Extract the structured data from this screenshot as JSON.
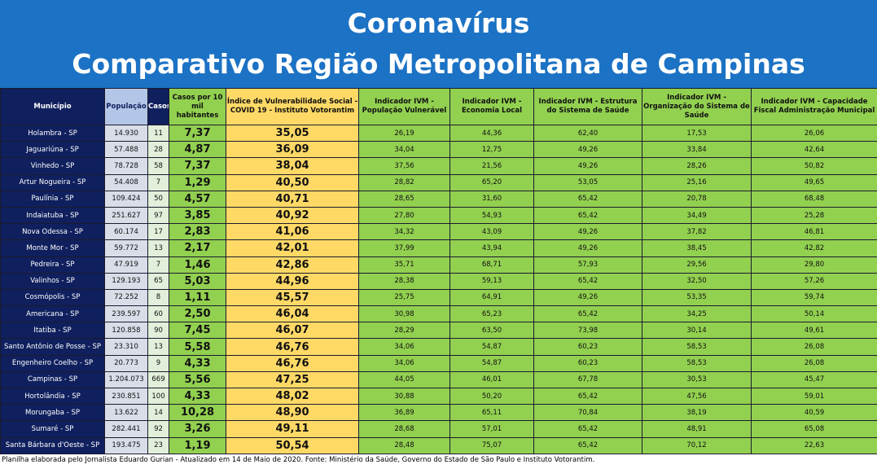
{
  "header": {
    "title": "Coronavírus",
    "subtitle": "Comparativo Região Metropolitana de Campinas"
  },
  "table": {
    "header": [
      "Município",
      "População",
      "Casos",
      "Casos por 10 mil habitantes",
      "Índice de Vulnerabilidade Social - COVID 19 - Instituto Votorantim",
      "Indicador IVM - População Vulnerável",
      "Indicador IVM - Economia Local",
      "Indicador IVM - Estrutura do Sistema de Saúde",
      "Indicador IVM - Organização do Sistema de Saúde",
      "Indicador IVM - Capacidade Fiscal Administração Municipal"
    ],
    "rows": [
      [
        "Holambra - SP",
        "14.930",
        "11",
        "7,37",
        "35,05",
        "26,19",
        "44,36",
        "62,40",
        "17,53",
        "26,06"
      ],
      [
        "Jaguariúna - SP",
        "57.488",
        "28",
        "4,87",
        "36,09",
        "34,04",
        "12,75",
        "49,26",
        "33,84",
        "42,64"
      ],
      [
        "Vinhedo - SP",
        "78.728",
        "58",
        "7,37",
        "38,04",
        "37,56",
        "21,56",
        "49,26",
        "28,26",
        "50,82"
      ],
      [
        "Artur Nogueira - SP",
        "54.408",
        "7",
        "1,29",
        "40,50",
        "28,82",
        "65,20",
        "53,05",
        "25,16",
        "49,65"
      ],
      [
        "Paulínia - SP",
        "109.424",
        "50",
        "4,57",
        "40,71",
        "28,65",
        "31,60",
        "65,42",
        "20,78",
        "68,48"
      ],
      [
        "Indaiatuba - SP",
        "251.627",
        "97",
        "3,85",
        "40,92",
        "27,80",
        "54,93",
        "65,42",
        "34,49",
        "25,28"
      ],
      [
        "Nova Odessa - SP",
        "60.174",
        "17",
        "2,83",
        "41,06",
        "34,32",
        "43,09",
        "49,26",
        "37,82",
        "46,81"
      ],
      [
        "Monte Mor - SP",
        "59.772",
        "13",
        "2,17",
        "42,01",
        "37,99",
        "43,94",
        "49,26",
        "38,45",
        "42,82"
      ],
      [
        "Pedreira - SP",
        "47.919",
        "7",
        "1,46",
        "42,86",
        "35,71",
        "68,71",
        "57,93",
        "29,56",
        "29,80"
      ],
      [
        "Valinhos - SP",
        "129.193",
        "65",
        "5,03",
        "44,96",
        "28,38",
        "59,13",
        "65,42",
        "32,50",
        "57,26"
      ],
      [
        "Cosmópolis - SP",
        "72.252",
        "8",
        "1,11",
        "45,57",
        "25,75",
        "64,91",
        "49,26",
        "53,35",
        "59,74"
      ],
      [
        "Americana - SP",
        "239.597",
        "60",
        "2,50",
        "46,04",
        "30,98",
        "65,23",
        "65,42",
        "34,25",
        "50,14"
      ],
      [
        "Itatiba - SP",
        "120.858",
        "90",
        "7,45",
        "46,07",
        "28,29",
        "63,50",
        "73,98",
        "30,14",
        "49,61"
      ],
      [
        "Santo Antônio de Posse - SP",
        "23.310",
        "13",
        "5,58",
        "46,76",
        "34,06",
        "54,87",
        "60,23",
        "58,53",
        "26,08"
      ],
      [
        "Engenheiro Coelho - SP",
        "20.773",
        "9",
        "4,33",
        "46,76",
        "34,06",
        "54,87",
        "60,23",
        "58,53",
        "26,08"
      ],
      [
        "Campinas - SP",
        "1.204.073",
        "669",
        "5,56",
        "47,25",
        "44,05",
        "46,01",
        "67,78",
        "30,53",
        "45,47"
      ],
      [
        "Hortolândia - SP",
        "230.851",
        "100",
        "4,33",
        "48,02",
        "30,88",
        "50,20",
        "65,42",
        "47,56",
        "59,01"
      ],
      [
        "Morungaba - SP",
        "13.622",
        "14",
        "10,28",
        "48,90",
        "36,89",
        "65,11",
        "70,84",
        "38,19",
        "40,59"
      ],
      [
        "Sumaré - SP",
        "282.441",
        "92",
        "3,26",
        "49,11",
        "28,68",
        "57,01",
        "65,42",
        "48,91",
        "65,08"
      ],
      [
        "Santa Bárbara d'Oeste - SP",
        "193.475",
        "23",
        "1,19",
        "50,54",
        "28,48",
        "75,07",
        "65,42",
        "70,12",
        "22,63"
      ]
    ]
  },
  "footer": "Planilha elaborada pelo Jornalista Eduardo Gurian - Atualizado em 14 de Maio de 2020. Fonte: Ministério da Saúde, Governo do Estado de São Paulo e Instituto Votorantim."
}
